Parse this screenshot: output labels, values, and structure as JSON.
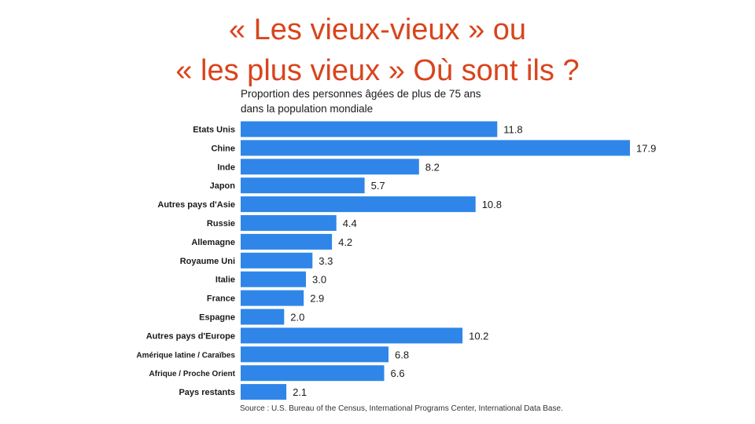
{
  "slide": {
    "title_line1": "« Les vieux-vieux » ou",
    "title_line2": "« les plus vieux » Où sont ils ?",
    "title_color": "#d9441c"
  },
  "chart_data": {
    "type": "bar",
    "orientation": "horizontal",
    "title_line1": "Proportion des personnes âgées de plus de 75 ans",
    "title_line2": "dans la population mondiale",
    "categories": [
      "Etats Unis",
      "Chine",
      "Inde",
      "Japon",
      "Autres pays d'Asie",
      "Russie",
      "Allemagne",
      "Royaume Uni",
      "Italie",
      "France",
      "Espagne",
      "Autres pays d'Europe",
      "Amérique latine / Caraïbes",
      "Afrique / Proche Orient",
      "Pays restants"
    ],
    "values": [
      11.8,
      17.9,
      8.2,
      5.7,
      10.8,
      4.4,
      4.2,
      3.3,
      3.0,
      2.9,
      2.0,
      10.2,
      6.8,
      6.6,
      2.1
    ],
    "value_labels": [
      "11.8",
      "17.9",
      "8.2",
      "5.7",
      "10.8",
      "4.4",
      "4.2",
      "3.3",
      "3.0",
      "2.9",
      "2.0",
      "10.2",
      "6.8",
      "6.6",
      "2.1"
    ],
    "bar_color": "#2f86e8",
    "xlim": [
      0,
      17.9
    ],
    "grid": false,
    "source": "Source : U.S. Bureau of the Census, International Programs Center, International Data Base."
  }
}
